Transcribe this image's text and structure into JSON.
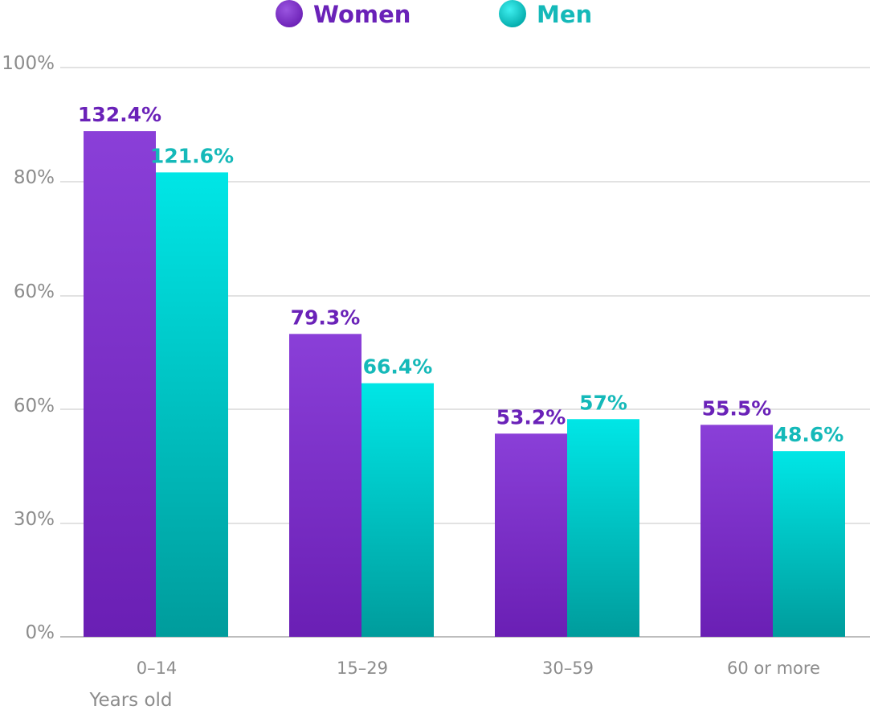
{
  "chart_data": {
    "type": "bar",
    "xlabel": "Years old",
    "categories": [
      "0–14",
      "15–29",
      "30–59",
      "60 or more"
    ],
    "y_tick_labels": [
      "0%",
      "30%",
      "60%",
      "60%",
      "80%",
      "100%"
    ],
    "grid": true,
    "legend": "top-center",
    "series": [
      {
        "name": "Women",
        "color": "#7b2fcf",
        "label_color": "#6a22b8",
        "values": [
          132.4,
          79.3,
          53.2,
          55.5
        ],
        "data_labels": [
          "132.4%",
          "79.3%",
          "53.2%",
          "55.5%"
        ]
      },
      {
        "name": "Men",
        "color": "#00cfcf",
        "label_color": "#15b9b9",
        "values": [
          121.6,
          66.4,
          57,
          48.6
        ],
        "data_labels": [
          "121.6%",
          "66.4%",
          "57%",
          "48.6%"
        ]
      }
    ]
  }
}
